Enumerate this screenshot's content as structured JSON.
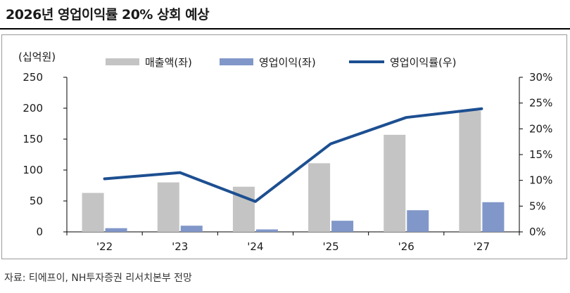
{
  "header": {
    "title": "2026년 영업이익률 20% 상회 예상"
  },
  "footer": {
    "source": "자료: 티에프이, NH투자증권 리서치본부 전망"
  },
  "colors": {
    "sales": "#c4c4c4",
    "op_profit": "#8197c9",
    "margin": "#1d4f91"
  },
  "chart_data": {
    "type": "bar",
    "unit_label": "(십억원)",
    "categories": [
      "'22",
      "'23",
      "'24",
      "'25",
      "'26",
      "'27"
    ],
    "series": [
      {
        "name": "매출액(좌)",
        "type": "bar",
        "axis": "left",
        "values": [
          63,
          80,
          73,
          111,
          157,
          196
        ]
      },
      {
        "name": "영업이익(좌)",
        "type": "bar",
        "axis": "left",
        "values": [
          6,
          10,
          4,
          18,
          35,
          48
        ]
      },
      {
        "name": "영업이익률(우)",
        "type": "line",
        "axis": "right",
        "values": [
          10.3,
          11.5,
          5.9,
          17.1,
          22.2,
          23.9
        ]
      }
    ],
    "ylim_left": [
      0,
      250
    ],
    "yticks_left": [
      "0",
      "50",
      "100",
      "150",
      "200",
      "250"
    ],
    "ylim_right": [
      0,
      30
    ],
    "yticks_right": [
      "0%",
      "5%",
      "10%",
      "15%",
      "20%",
      "25%",
      "30%"
    ],
    "grid": false,
    "legend_position": "top"
  }
}
